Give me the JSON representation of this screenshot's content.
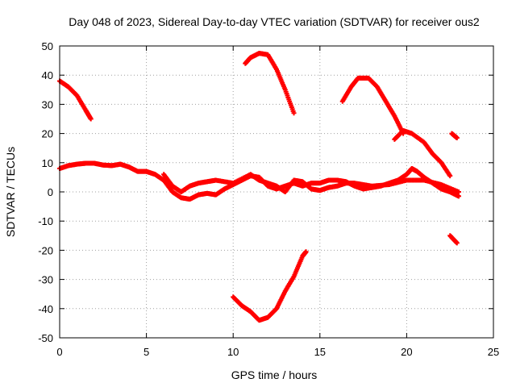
{
  "chart_data": {
    "type": "scatter",
    "title": "Day 048 of 2023, Sidereal Day-to-day VTEC variation (SDTVAR) for receiver ous2",
    "xlabel": "GPS time / hours",
    "ylabel": "SDTVAR / TECUs",
    "xlim": [
      0,
      25
    ],
    "ylim": [
      -50,
      50
    ],
    "xticks": [
      0,
      5,
      10,
      15,
      20,
      25
    ],
    "yticks": [
      -50,
      -40,
      -30,
      -20,
      -10,
      0,
      10,
      20,
      30,
      40,
      50
    ],
    "grid": true,
    "series_color": "#ff0000",
    "series": [
      {
        "name": "main-band-a",
        "points": [
          [
            0,
            8
          ],
          [
            0.5,
            9
          ],
          [
            1,
            9.5
          ],
          [
            1.5,
            9.8
          ],
          [
            2,
            9.8
          ],
          [
            2.5,
            9.2
          ],
          [
            3,
            9
          ],
          [
            3.5,
            9.5
          ],
          [
            4,
            8.5
          ],
          [
            4.5,
            7
          ],
          [
            5,
            7
          ],
          [
            5.5,
            6
          ],
          [
            6,
            4
          ],
          [
            6.5,
            0
          ],
          [
            7,
            -2
          ],
          [
            7.5,
            -2.5
          ],
          [
            8,
            -1
          ],
          [
            8.5,
            -0.5
          ],
          [
            9,
            -1
          ],
          [
            9.5,
            1
          ],
          [
            10,
            2.5
          ],
          [
            10.5,
            4
          ],
          [
            11,
            5.5
          ],
          [
            11.5,
            5
          ],
          [
            12,
            2
          ],
          [
            12.5,
            1
          ],
          [
            13,
            2
          ],
          [
            13.5,
            3
          ],
          [
            14,
            2
          ],
          [
            14.5,
            3
          ],
          [
            15,
            3
          ],
          [
            15.5,
            4
          ],
          [
            16,
            4
          ],
          [
            16.5,
            3.5
          ],
          [
            17,
            2
          ],
          [
            17.5,
            1
          ],
          [
            18,
            1.5
          ],
          [
            18.5,
            2
          ],
          [
            19,
            3
          ],
          [
            19.5,
            4
          ],
          [
            20,
            6
          ],
          [
            20.3,
            8
          ],
          [
            20.6,
            7
          ],
          [
            21,
            5
          ],
          [
            21.5,
            3
          ],
          [
            22,
            1
          ],
          [
            22.5,
            0
          ],
          [
            23,
            -1.5
          ]
        ]
      },
      {
        "name": "main-band-b",
        "points": [
          [
            6,
            6
          ],
          [
            6.5,
            2
          ],
          [
            7,
            0
          ],
          [
            7.5,
            2
          ],
          [
            8,
            3
          ],
          [
            8.5,
            3.5
          ],
          [
            9,
            4
          ],
          [
            10,
            3
          ],
          [
            11,
            6
          ],
          [
            11.5,
            4
          ],
          [
            12,
            3
          ],
          [
            12.5,
            2
          ],
          [
            13,
            0
          ],
          [
            13.5,
            4
          ],
          [
            14,
            3.5
          ],
          [
            14.5,
            1
          ],
          [
            15,
            0.5
          ],
          [
            15.5,
            1.5
          ],
          [
            16,
            2
          ],
          [
            16.5,
            3
          ],
          [
            17,
            3
          ],
          [
            18,
            2
          ],
          [
            19,
            2.5
          ],
          [
            20,
            4
          ],
          [
            21,
            4
          ],
          [
            22,
            2.5
          ],
          [
            23,
            0
          ]
        ]
      },
      {
        "name": "arc-early-decline",
        "points": [
          [
            0,
            38
          ],
          [
            0.5,
            36
          ],
          [
            1,
            33
          ],
          [
            1.5,
            28
          ],
          [
            1.8,
            25
          ]
        ]
      },
      {
        "name": "arc-noon-high",
        "points": [
          [
            10.7,
            44
          ],
          [
            11,
            46
          ],
          [
            11.5,
            47.5
          ],
          [
            12,
            47
          ],
          [
            12.5,
            42
          ],
          [
            13,
            35
          ],
          [
            13.5,
            27
          ]
        ]
      },
      {
        "name": "arc-noon-low",
        "points": [
          [
            10,
            -36
          ],
          [
            10.5,
            -39
          ],
          [
            11,
            -41
          ],
          [
            11.5,
            -44
          ],
          [
            12,
            -43
          ],
          [
            12.5,
            -40
          ],
          [
            13,
            -34
          ],
          [
            13.5,
            -29
          ],
          [
            14,
            -22
          ],
          [
            14.2,
            -20.5
          ]
        ]
      },
      {
        "name": "arc-evening-high",
        "points": [
          [
            16.3,
            31
          ],
          [
            16.8,
            36
          ],
          [
            17.2,
            39
          ],
          [
            17.8,
            39
          ],
          [
            18.3,
            36
          ],
          [
            18.8,
            31
          ],
          [
            19.3,
            26
          ],
          [
            19.8,
            20
          ]
        ]
      },
      {
        "name": "arc-late-decline",
        "points": [
          [
            19.3,
            18
          ],
          [
            19.8,
            21
          ],
          [
            20.3,
            20
          ],
          [
            21,
            17
          ],
          [
            21.5,
            13
          ],
          [
            22,
            10
          ],
          [
            22.5,
            5.5
          ]
        ]
      },
      {
        "name": "arc-late-small-high",
        "points": [
          [
            22.6,
            20
          ],
          [
            22.9,
            18.5
          ]
        ]
      },
      {
        "name": "arc-late-small-low",
        "points": [
          [
            22.5,
            -15
          ],
          [
            22.9,
            -17.5
          ]
        ]
      }
    ]
  }
}
